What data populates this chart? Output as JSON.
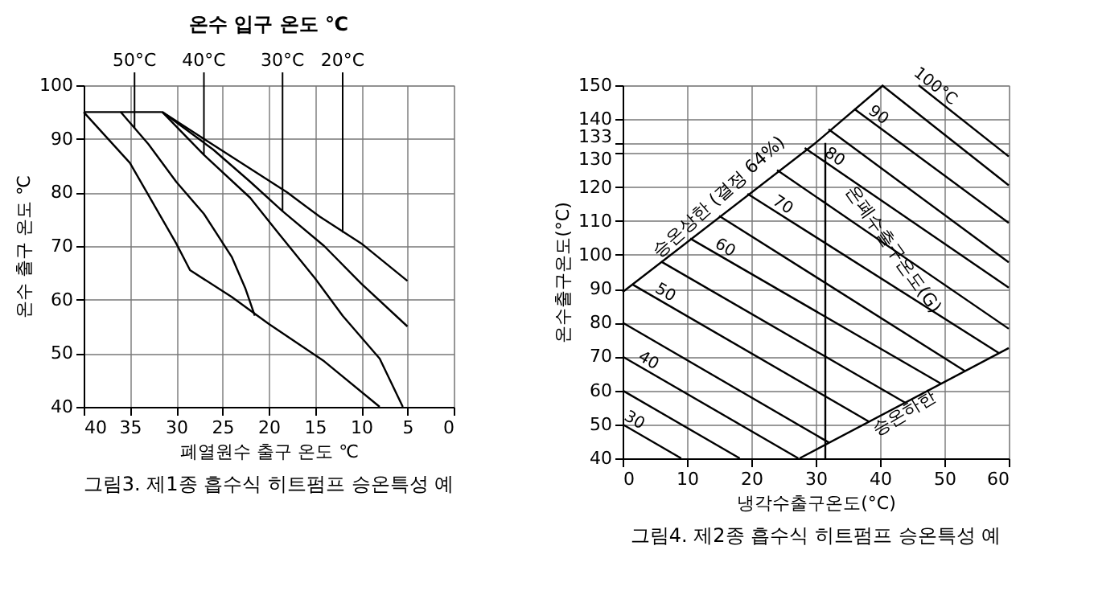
{
  "chart_data": [
    {
      "type": "line",
      "title": "그림3. 제1종 흡수식 히트펌프 승온특성 예",
      "legend_title": "온수 입구 온도 ℃",
      "xlabel": "폐열원수 출구 온도 ℃",
      "ylabel": "온수 출구 온도 ℃",
      "xlim": [
        40,
        0
      ],
      "xticks": [
        40,
        35,
        30,
        25,
        20,
        15,
        10,
        5,
        0
      ],
      "ylim": [
        40,
        100
      ],
      "yticks": [
        40,
        50,
        60,
        70,
        80,
        90,
        100
      ],
      "grid": true,
      "series": [
        {
          "color": "#000000",
          "x": [
            31.5,
            27,
            22.5,
            18,
            14.5,
            10,
            5
          ],
          "values": [
            95,
            90,
            85,
            80,
            75.5,
            70.5,
            63.5
          ]
        },
        {
          "color": "#000000",
          "x": [
            31.5,
            26,
            22,
            18.5,
            14,
            10,
            5
          ],
          "values": [
            95,
            88,
            82,
            76.5,
            70,
            63,
            55
          ]
        },
        {
          "color": "#000000",
          "x": [
            31.5,
            27,
            22,
            19,
            15,
            12,
            8,
            5.5
          ],
          "values": [
            95,
            87,
            79,
            72.5,
            64,
            57,
            49,
            40
          ]
        },
        {
          "color": "#000000",
          "x": [
            36,
            33,
            30,
            27,
            24,
            22.5,
            21.5
          ],
          "values": [
            95,
            89,
            82,
            76,
            68,
            62,
            57
          ]
        },
        {
          "color": "#000000",
          "x": [
            40,
            35,
            32.5,
            30,
            28.5,
            24,
            20,
            14,
            8
          ],
          "values": [
            95,
            85.5,
            78,
            70.5,
            65.5,
            60.5,
            55.5,
            48.5,
            40
          ]
        },
        {
          "color": "#000000",
          "x": [
            40,
            31.5
          ],
          "values": [
            95,
            95
          ]
        }
      ],
      "annotations": [
        {
          "text": "50°C",
          "x": 34.5,
          "y": 92
        },
        {
          "text": "40°C",
          "x": 27,
          "y": 87
        },
        {
          "text": "30°C",
          "x": 18.5,
          "y": 76.5
        },
        {
          "text": "20°C",
          "x": 12,
          "y": 72.5
        }
      ]
    },
    {
      "type": "line",
      "title": "그림4. 제2종 흡수식 히트펌프 승온특성 예",
      "xlabel": "냉각수출구온도(°C)",
      "ylabel": "온수출구온도(°C)",
      "xlim": [
        0,
        60
      ],
      "xticks": [
        0,
        10,
        20,
        30,
        40,
        50,
        60
      ],
      "ylim": [
        40,
        150
      ],
      "yticks": [
        40,
        50,
        60,
        70,
        80,
        90,
        100,
        110,
        120,
        130,
        133,
        140,
        150
      ],
      "grid": true,
      "series": [
        {
          "name": "30",
          "color": "#000000",
          "x": [
            0,
            9.1
          ],
          "values": [
            50,
            40
          ]
        },
        {
          "color": "#000000",
          "x": [
            0,
            18.2
          ],
          "values": [
            60,
            40
          ]
        },
        {
          "name": "40",
          "color": "#000000",
          "x": [
            0,
            27.3
          ],
          "values": [
            70,
            40
          ]
        },
        {
          "color": "#000000",
          "x": [
            0,
            32.1
          ],
          "values": [
            80,
            44.6
          ]
        },
        {
          "name": "50",
          "color": "#000000",
          "x": [
            1.5,
            38.3
          ],
          "values": [
            91.3,
            50.8
          ]
        },
        {
          "color": "#000000",
          "x": [
            6,
            43.9
          ],
          "values": [
            98,
            56.4
          ]
        },
        {
          "name": "60",
          "color": "#000000",
          "x": [
            10.5,
            49.5
          ],
          "values": [
            104.8,
            62
          ]
        },
        {
          "color": "#000000",
          "x": [
            15,
            53.2
          ],
          "values": [
            111.5,
            65.7
          ]
        },
        {
          "name": "70",
          "color": "#000000",
          "x": [
            19.4,
            58.5
          ],
          "values": [
            118,
            71
          ]
        },
        {
          "color": "#000000",
          "x": [
            24,
            60
          ],
          "values": [
            125,
            78.2
          ]
        },
        {
          "name": "80",
          "color": "#000000",
          "x": [
            28.3,
            60
          ],
          "values": [
            131.5,
            90.3
          ]
        },
        {
          "color": "#000000",
          "x": [
            32,
            60
          ],
          "values": [
            137,
            97.8
          ]
        },
        {
          "name": "90",
          "color": "#000000",
          "x": [
            36,
            60
          ],
          "values": [
            143,
            109.4
          ]
        },
        {
          "color": "#000000",
          "x": [
            40.3,
            60
          ],
          "values": [
            150,
            120.5
          ]
        },
        {
          "name": "100°C",
          "color": "#000000",
          "x": [
            46,
            60
          ],
          "values": [
            150,
            129
          ]
        },
        {
          "color": "#000000",
          "x": [
            0,
            30,
            40.5
          ],
          "values": [
            89,
            133,
            150
          ]
        },
        {
          "color": "#000000",
          "x": [
            27.5,
            60
          ],
          "values": [
            40,
            72.5
          ]
        },
        {
          "color": "#000000",
          "x": [
            31.5,
            31.5
          ],
          "values": [
            40,
            133
          ]
        }
      ],
      "annotations": [
        "승온상한 (결정 64%)",
        "온폐수출구온도(G)",
        "승온하한"
      ]
    }
  ]
}
